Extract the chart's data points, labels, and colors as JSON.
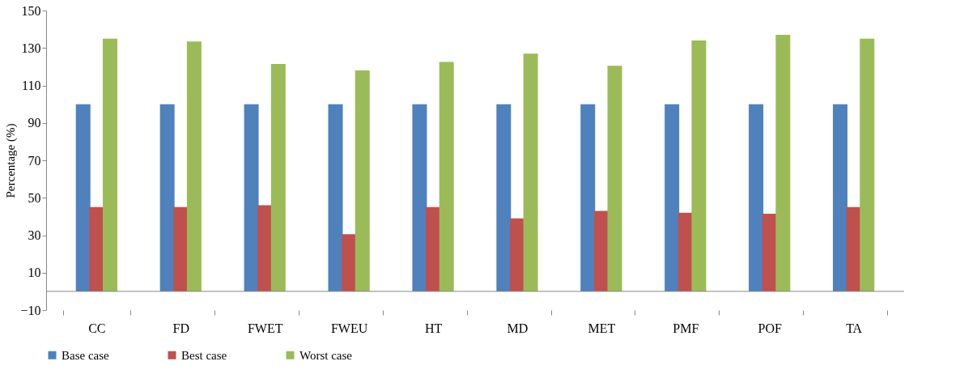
{
  "chart_data": {
    "type": "bar",
    "ylabel": "Percentage (%)",
    "categories": [
      "CC",
      "FD",
      "FWET",
      "FWEU",
      "HT",
      "MD",
      "MET",
      "PMF",
      "POF",
      "TA"
    ],
    "series": [
      {
        "name": "Base case",
        "color": "#4f81bd",
        "values": [
          100,
          100,
          100,
          100,
          100,
          100,
          100,
          100,
          100,
          100
        ]
      },
      {
        "name": "Best case",
        "color": "#c0504d",
        "values": [
          45,
          45,
          46,
          30.5,
          45,
          39,
          43,
          42,
          41.5,
          45
        ]
      },
      {
        "name": "Worst case",
        "color": "#9bbb59",
        "values": [
          135,
          133.5,
          121.5,
          118,
          122.5,
          127,
          120.5,
          134,
          137,
          135
        ]
      }
    ],
    "ylim": [
      -10,
      150
    ],
    "yticks": [
      -10,
      10,
      30,
      50,
      70,
      90,
      110,
      130,
      150
    ],
    "grid": false,
    "legend": "bottom"
  }
}
